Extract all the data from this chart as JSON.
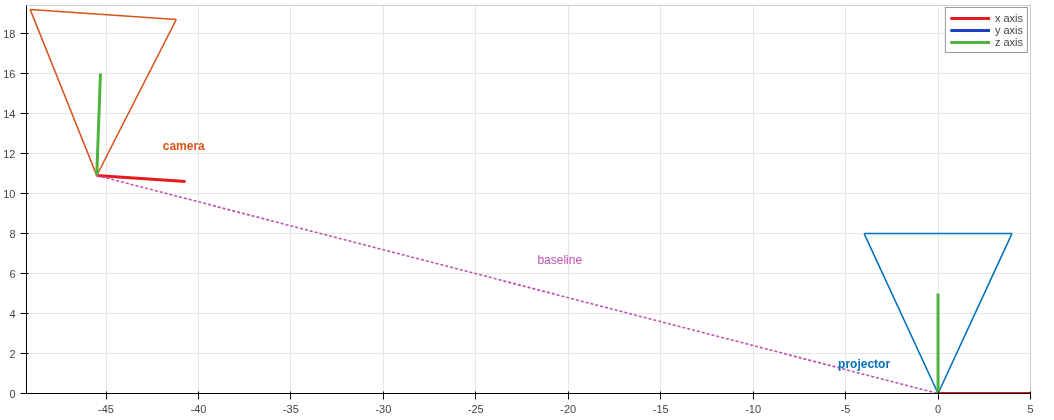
{
  "chart_data": {
    "type": "line",
    "xlim": [
      -49.3,
      5
    ],
    "ylim": [
      0,
      19.4
    ],
    "xticks": [
      -45,
      -40,
      -35,
      -30,
      -25,
      -20,
      -15,
      -10,
      -5,
      0,
      5
    ],
    "yticks": [
      0,
      2,
      4,
      6,
      8,
      10,
      12,
      14,
      16,
      18
    ],
    "grid": true,
    "legend": "top right",
    "line_style": "solid",
    "marker": "none",
    "series": [
      {
        "color": "#d95319",
        "x": [
          -49.1,
          -45.5,
          -41.2,
          null,
          -49.1,
          -41.2
        ],
        "values": [
          19.2,
          10.9,
          18.7,
          null,
          19.2,
          18.7
        ]
      },
      {
        "color": "#0072bd",
        "x": [
          -4,
          0,
          4,
          null,
          -4,
          4
        ],
        "values": [
          8,
          0,
          8,
          null,
          8,
          8
        ]
      },
      {
        "name": "x axis",
        "color": "#e41a1c",
        "x": [
          -45.5,
          -40.7,
          null,
          0,
          5
        ],
        "values": [
          10.9,
          10.6,
          null,
          0,
          0
        ]
      },
      {
        "name": "y axis",
        "color": "#1f3fbf"
      },
      {
        "name": "z axis",
        "color": "#4db33d",
        "x": [
          -45.5,
          -45.3,
          null,
          0,
          0
        ],
        "values": [
          10.9,
          16,
          null,
          0,
          5
        ]
      },
      {
        "color": "#c050b0",
        "line_style": "dashed",
        "x": [
          -45.5,
          0
        ],
        "values": [
          10.9,
          0
        ]
      }
    ],
    "annotations": [
      "camera",
      "projector",
      "baseline"
    ]
  }
}
